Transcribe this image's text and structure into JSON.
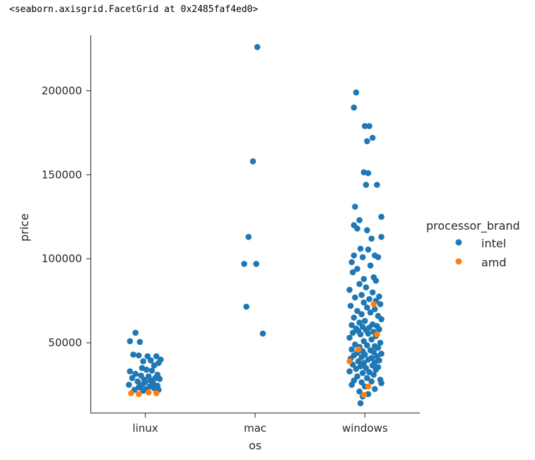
{
  "output_text": "<seaborn.axisgrid.FacetGrid at 0x2485faf4ed0>",
  "colors": {
    "intel": "#1f77b4",
    "amd": "#ff7f0e",
    "axis": "#262626"
  },
  "chart_data": {
    "type": "scatter",
    "subtype": "stripplot",
    "title": "",
    "xlabel": "os",
    "ylabel": "price",
    "categories": [
      "linux",
      "mac",
      "windows"
    ],
    "ylim": [
      8000,
      233000
    ],
    "yticks": [
      50000,
      100000,
      150000,
      200000
    ],
    "ytick_labels": [
      "50000",
      "100000",
      "150000",
      "200000"
    ],
    "legend": {
      "title": "processor_brand",
      "entries": [
        "intel",
        "amd"
      ],
      "placement": "right"
    },
    "series": [
      {
        "name": "intel",
        "points": [
          [
            "linux",
            -0.09,
            56000
          ],
          [
            "linux",
            -0.14,
            51000
          ],
          [
            "linux",
            -0.05,
            50500
          ],
          [
            "linux",
            -0.11,
            43000
          ],
          [
            "linux",
            -0.06,
            42500
          ],
          [
            "linux",
            0.02,
            42000
          ],
          [
            "linux",
            0.1,
            42000
          ],
          [
            "linux",
            0.14,
            40000
          ],
          [
            "linux",
            0.05,
            39500
          ],
          [
            "linux",
            -0.02,
            39000
          ],
          [
            "linux",
            0.12,
            38000
          ],
          [
            "linux",
            0.08,
            36500
          ],
          [
            "linux",
            -0.03,
            35000
          ],
          [
            "linux",
            0.01,
            34000
          ],
          [
            "linux",
            -0.14,
            33000
          ],
          [
            "linux",
            0.06,
            33500
          ],
          [
            "linux",
            -0.09,
            31500
          ],
          [
            "linux",
            0.11,
            31000
          ],
          [
            "linux",
            -0.04,
            30500
          ],
          [
            "linux",
            0.03,
            30000
          ],
          [
            "linux",
            -0.12,
            29000
          ],
          [
            "linux",
            0.09,
            29000
          ],
          [
            "linux",
            0.13,
            28500
          ],
          [
            "linux",
            -0.01,
            28000
          ],
          [
            "linux",
            0.05,
            27500
          ],
          [
            "linux",
            -0.07,
            27000
          ],
          [
            "linux",
            0.0,
            26500
          ],
          [
            "linux",
            0.07,
            26000
          ],
          [
            "linux",
            -0.15,
            25000
          ],
          [
            "linux",
            -0.03,
            25000
          ],
          [
            "linux",
            0.11,
            24500
          ],
          [
            "linux",
            0.04,
            24000
          ],
          [
            "linux",
            -0.06,
            23500
          ],
          [
            "linux",
            0.08,
            23000
          ],
          [
            "linux",
            0.01,
            22500
          ],
          [
            "linux",
            0.12,
            22000
          ],
          [
            "linux",
            -0.1,
            22000
          ],
          [
            "linux",
            -0.02,
            21500
          ],
          [
            "mac",
            0.02,
            226000
          ],
          [
            "mac",
            -0.02,
            158000
          ],
          [
            "mac",
            -0.06,
            113000
          ],
          [
            "mac",
            -0.1,
            97000
          ],
          [
            "mac",
            0.01,
            97000
          ],
          [
            "mac",
            -0.08,
            71500
          ],
          [
            "mac",
            0.07,
            55500
          ],
          [
            "windows",
            -0.08,
            199000
          ],
          [
            "windows",
            -0.1,
            190000
          ],
          [
            "windows",
            0.0,
            179000
          ],
          [
            "windows",
            0.04,
            179000
          ],
          [
            "windows",
            0.07,
            172000
          ],
          [
            "windows",
            0.02,
            170000
          ],
          [
            "windows",
            -0.01,
            151500
          ],
          [
            "windows",
            0.03,
            151000
          ],
          [
            "windows",
            0.01,
            144000
          ],
          [
            "windows",
            0.11,
            144000
          ],
          [
            "windows",
            -0.09,
            131000
          ],
          [
            "windows",
            0.15,
            125000
          ],
          [
            "windows",
            -0.05,
            123000
          ],
          [
            "windows",
            -0.1,
            120000
          ],
          [
            "windows",
            -0.07,
            118000
          ],
          [
            "windows",
            0.02,
            117000
          ],
          [
            "windows",
            0.15,
            113000
          ],
          [
            "windows",
            0.06,
            112000
          ],
          [
            "windows",
            -0.04,
            106000
          ],
          [
            "windows",
            0.03,
            105500
          ],
          [
            "windows",
            0.09,
            102000
          ],
          [
            "windows",
            -0.1,
            102000
          ],
          [
            "windows",
            -0.02,
            101000
          ],
          [
            "windows",
            0.12,
            101000
          ],
          [
            "windows",
            -0.12,
            98000
          ],
          [
            "windows",
            0.05,
            96000
          ],
          [
            "windows",
            -0.07,
            94000
          ],
          [
            "windows",
            -0.11,
            92000
          ],
          [
            "windows",
            0.08,
            89000
          ],
          [
            "windows",
            -0.01,
            88000
          ],
          [
            "windows",
            0.1,
            87000
          ],
          [
            "windows",
            -0.05,
            85000
          ],
          [
            "windows",
            0.01,
            83000
          ],
          [
            "windows",
            -0.14,
            81500
          ],
          [
            "windows",
            0.07,
            80000
          ],
          [
            "windows",
            -0.03,
            78500
          ],
          [
            "windows",
            0.13,
            77500
          ],
          [
            "windows",
            -0.09,
            77000
          ],
          [
            "windows",
            0.04,
            76000
          ],
          [
            "windows",
            0.1,
            75000
          ],
          [
            "windows",
            -0.01,
            74000
          ],
          [
            "windows",
            0.14,
            73000
          ],
          [
            "windows",
            -0.13,
            72000
          ],
          [
            "windows",
            0.02,
            71000
          ],
          [
            "windows",
            0.09,
            70000
          ],
          [
            "windows",
            -0.07,
            69000
          ],
          [
            "windows",
            0.05,
            68000
          ],
          [
            "windows",
            -0.03,
            67000
          ],
          [
            "windows",
            0.12,
            66000
          ],
          [
            "windows",
            -0.1,
            65000
          ],
          [
            "windows",
            0.15,
            64000
          ],
          [
            "windows",
            0.0,
            63000
          ],
          [
            "windows",
            -0.05,
            62000
          ],
          [
            "windows",
            0.07,
            61000
          ],
          [
            "windows",
            -0.12,
            60500
          ],
          [
            "windows",
            0.11,
            60000
          ],
          [
            "windows",
            -0.02,
            59500
          ],
          [
            "windows",
            0.04,
            59000
          ],
          [
            "windows",
            -0.08,
            58500
          ],
          [
            "windows",
            0.13,
            58000
          ],
          [
            "windows",
            0.01,
            57500
          ],
          [
            "windows",
            -0.06,
            57000
          ],
          [
            "windows",
            0.08,
            56500
          ],
          [
            "windows",
            -0.11,
            56000
          ],
          [
            "windows",
            0.03,
            55500
          ],
          [
            "windows",
            -0.04,
            55000
          ],
          [
            "windows",
            0.1,
            54000
          ],
          [
            "windows",
            -0.14,
            53000
          ],
          [
            "windows",
            0.06,
            52000
          ],
          [
            "windows",
            -0.01,
            51000
          ],
          [
            "windows",
            0.14,
            50000
          ],
          [
            "windows",
            -0.09,
            49000
          ],
          [
            "windows",
            0.02,
            48500
          ],
          [
            "windows",
            0.09,
            48000
          ],
          [
            "windows",
            -0.05,
            47500
          ],
          [
            "windows",
            0.12,
            47000
          ],
          [
            "windows",
            -0.12,
            46000
          ],
          [
            "windows",
            0.05,
            45500
          ],
          [
            "windows",
            -0.02,
            45000
          ],
          [
            "windows",
            0.08,
            44500
          ],
          [
            "windows",
            -0.07,
            44000
          ],
          [
            "windows",
            0.15,
            43500
          ],
          [
            "windows",
            0.0,
            43000
          ],
          [
            "windows",
            -0.1,
            42500
          ],
          [
            "windows",
            0.11,
            42000
          ],
          [
            "windows",
            -0.03,
            41500
          ],
          [
            "windows",
            0.06,
            41000
          ],
          [
            "windows",
            -0.13,
            40500
          ],
          [
            "windows",
            0.03,
            40000
          ],
          [
            "windows",
            0.13,
            39500
          ],
          [
            "windows",
            -0.06,
            39000
          ],
          [
            "windows",
            0.09,
            38500
          ],
          [
            "windows",
            -0.01,
            38000
          ],
          [
            "windows",
            -0.11,
            37000
          ],
          [
            "windows",
            0.07,
            36500
          ],
          [
            "windows",
            -0.04,
            36000
          ],
          [
            "windows",
            0.12,
            35500
          ],
          [
            "windows",
            0.01,
            35000
          ],
          [
            "windows",
            -0.08,
            34500
          ],
          [
            "windows",
            0.1,
            34000
          ],
          [
            "windows",
            -0.14,
            33000
          ],
          [
            "windows",
            0.04,
            32500
          ],
          [
            "windows",
            -0.02,
            32000
          ],
          [
            "windows",
            0.08,
            31000
          ],
          [
            "windows",
            -0.07,
            30000
          ],
          [
            "windows",
            0.02,
            29000
          ],
          [
            "windows",
            0.14,
            28000
          ],
          [
            "windows",
            -0.1,
            27500
          ],
          [
            "windows",
            0.06,
            27000
          ],
          [
            "windows",
            -0.03,
            26500
          ],
          [
            "windows",
            0.15,
            26000
          ],
          [
            "windows",
            -0.12,
            25000
          ],
          [
            "windows",
            0.0,
            24000
          ],
          [
            "windows",
            0.09,
            22500
          ],
          [
            "windows",
            -0.05,
            21000
          ],
          [
            "windows",
            0.03,
            19500
          ],
          [
            "windows",
            -0.02,
            18000
          ],
          [
            "windows",
            -0.04,
            14000
          ]
        ]
      },
      {
        "name": "amd",
        "points": [
          [
            "linux",
            -0.13,
            20000
          ],
          [
            "linux",
            -0.06,
            19500
          ],
          [
            "linux",
            0.03,
            20500
          ],
          [
            "linux",
            0.1,
            20000
          ],
          [
            "windows",
            0.08,
            73000
          ],
          [
            "windows",
            0.11,
            55000
          ],
          [
            "windows",
            -0.14,
            39000
          ],
          [
            "windows",
            0.03,
            24000
          ],
          [
            "windows",
            -0.01,
            19000
          ],
          [
            "windows",
            -0.06,
            46000
          ]
        ]
      }
    ]
  }
}
